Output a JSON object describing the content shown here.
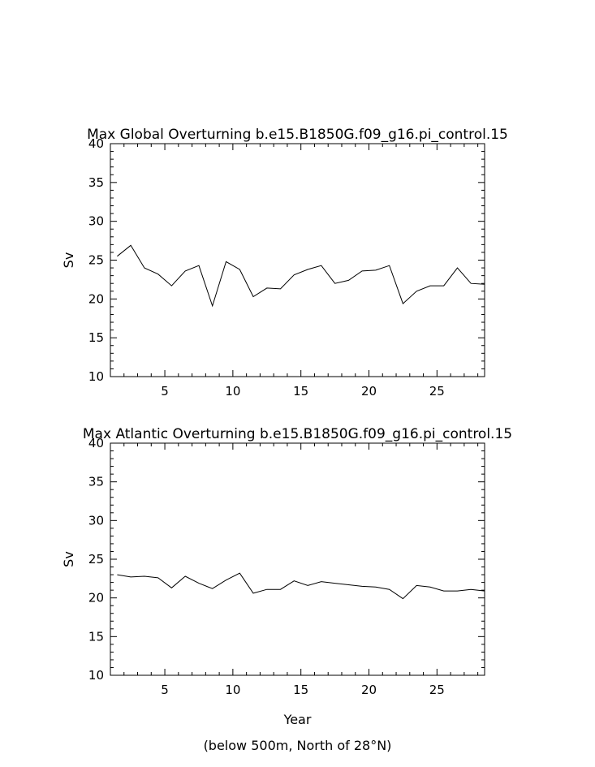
{
  "chart_data": [
    {
      "type": "line",
      "title": "Max Global Overturning b.e15.B1850G.f09_g16.pi_control.15",
      "ylabel": "Sv",
      "xlabel": "",
      "xlim": [
        1,
        28.5
      ],
      "ylim": [
        10,
        40
      ],
      "x_ticks": [
        5,
        10,
        15,
        20,
        25
      ],
      "y_ticks": [
        10,
        15,
        20,
        25,
        30,
        35,
        40
      ],
      "series": [
        {
          "x": [
            1.5,
            2.5,
            3.5,
            4.5,
            5.5,
            6.5,
            7.5,
            8.5,
            9.5,
            10.5,
            11.5,
            12.5,
            13.5,
            14.5,
            15.5,
            16.5,
            17.5,
            18.5,
            19.5,
            20.5,
            21.5,
            22.5,
            23.5,
            24.5,
            25.5,
            26.5,
            27.5,
            28.5
          ],
          "values": [
            25.5,
            26.9,
            24.0,
            23.2,
            21.7,
            23.6,
            24.3,
            19.1,
            24.8,
            23.8,
            20.3,
            21.4,
            21.3,
            23.1,
            23.8,
            24.3,
            22.0,
            22.4,
            23.6,
            23.7,
            24.3,
            19.4,
            21.0,
            21.7,
            21.7,
            24.0,
            22.0,
            21.9
          ]
        }
      ]
    },
    {
      "type": "line",
      "title": "Max Atlantic Overturning b.e15.B1850G.f09_g16.pi_control.15",
      "ylabel": "Sv",
      "xlabel": "Year",
      "subtitle": "(below 500m, North of 28°N)",
      "xlim": [
        1,
        28.5
      ],
      "ylim": [
        10,
        40
      ],
      "x_ticks": [
        5,
        10,
        15,
        20,
        25
      ],
      "y_ticks": [
        10,
        15,
        20,
        25,
        30,
        35,
        40
      ],
      "series": [
        {
          "x": [
            1.5,
            2.5,
            3.5,
            4.5,
            5.5,
            6.5,
            7.5,
            8.5,
            9.5,
            10.5,
            11.5,
            12.5,
            13.5,
            14.5,
            15.5,
            16.5,
            17.5,
            18.5,
            19.5,
            20.5,
            21.5,
            22.5,
            23.5,
            24.5,
            25.5,
            26.5,
            27.5,
            28.5
          ],
          "values": [
            23.0,
            22.7,
            22.8,
            22.6,
            21.3,
            22.8,
            21.9,
            21.2,
            22.3,
            23.2,
            20.6,
            21.1,
            21.1,
            22.2,
            21.6,
            22.1,
            21.9,
            21.7,
            21.5,
            21.4,
            21.1,
            19.9,
            21.6,
            21.4,
            20.9,
            20.9,
            21.1,
            20.9
          ]
        }
      ]
    }
  ]
}
